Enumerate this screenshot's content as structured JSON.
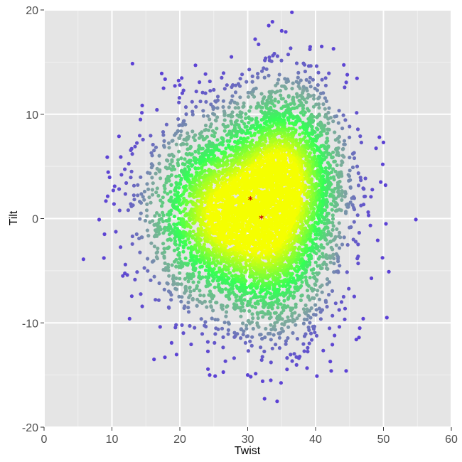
{
  "chart_data": {
    "type": "scatter",
    "title": "",
    "xlabel": "Twist",
    "ylabel": "Tilt",
    "xlim": [
      0,
      60
    ],
    "ylim": [
      -20,
      20
    ],
    "x_ticks": [
      0,
      10,
      20,
      30,
      40,
      50,
      60
    ],
    "y_ticks": [
      -20,
      -10,
      0,
      10,
      20
    ],
    "x_tick_labels": [
      "0",
      "10",
      "20",
      "30",
      "40",
      "50",
      "60"
    ],
    "y_tick_labels": [
      "-20",
      "-10",
      "0",
      "10",
      "20"
    ],
    "grid": true,
    "legend": "none",
    "colors": {
      "panel_background": "#e5e5e5",
      "grid_major": "#ffffff",
      "grid_minor": "#f2f2f2",
      "density_high": "#f5ff00",
      "density_mid": "#33ff55",
      "density_low": "#7fa6a0",
      "density_outlier": "#5b3fd6",
      "marker": "#cc0000"
    },
    "markers": [
      {
        "x": 30.4,
        "y": 1.8,
        "symbol": "*"
      },
      {
        "x": 32.0,
        "y": 0.0,
        "symbol": "*"
      }
    ],
    "outlier_points": [
      {
        "x": 5.8,
        "y": -3.9
      },
      {
        "x": 8.9,
        "y": -1.5
      },
      {
        "x": 10.2,
        "y": 2.7
      },
      {
        "x": 10.3,
        "y": 1.4
      },
      {
        "x": 10.4,
        "y": 3.1
      },
      {
        "x": 11.3,
        "y": 5.9
      },
      {
        "x": 11.4,
        "y": 4.2
      },
      {
        "x": 11.6,
        "y": -5.5
      },
      {
        "x": 12.6,
        "y": -9.6
      },
      {
        "x": 12.9,
        "y": 6.7
      },
      {
        "x": 13.4,
        "y": 6.9
      },
      {
        "x": 14.2,
        "y": 9.5
      },
      {
        "x": 16.2,
        "y": -13.5
      },
      {
        "x": 17.8,
        "y": -13.3
      },
      {
        "x": 17.6,
        "y": 12.5
      },
      {
        "x": 22.3,
        "y": 14.7
      },
      {
        "x": 24.4,
        "y": -15.0
      },
      {
        "x": 25.2,
        "y": -15.1
      },
      {
        "x": 30.0,
        "y": -15.0
      },
      {
        "x": 31.6,
        "y": 16.7
      },
      {
        "x": 32.2,
        "y": -15.6
      },
      {
        "x": 33.4,
        "y": -15.5
      },
      {
        "x": 33.1,
        "y": 18.5
      },
      {
        "x": 35.0,
        "y": 18.0
      },
      {
        "x": 35.6,
        "y": 17.9
      },
      {
        "x": 40.2,
        "y": -15.1
      },
      {
        "x": 42.3,
        "y": -14.6
      },
      {
        "x": 44.5,
        "y": -14.6
      },
      {
        "x": 46.0,
        "y": -11.6
      },
      {
        "x": 46.4,
        "y": -11.4
      },
      {
        "x": 46.5,
        "y": -10.5
      },
      {
        "x": 49.4,
        "y": 7.8
      },
      {
        "x": 49.6,
        "y": 3.5
      },
      {
        "x": 50.0,
        "y": 7.3
      },
      {
        "x": 49.9,
        "y": 5.2
      },
      {
        "x": 50.3,
        "y": 3.2
      },
      {
        "x": 50.5,
        "y": -9.5
      },
      {
        "x": 50.8,
        "y": -5.1
      },
      {
        "x": 40.9,
        "y": 16.5
      },
      {
        "x": 27.6,
        "y": 15.5
      },
      {
        "x": 31.1,
        "y": 17.2
      },
      {
        "x": 20.0,
        "y": 12.8
      }
    ],
    "clusters": [
      {
        "name": "",
        "center": [
          26.0,
          0.5
        ],
        "spread": [
          5.5,
          4.5
        ],
        "count": 2600
      },
      {
        "name": "",
        "center": [
          35.5,
          4.0
        ],
        "spread": [
          4.5,
          4.5
        ],
        "count": 2600
      },
      {
        "name": "",
        "center": [
          34.0,
          -4.0
        ],
        "spread": [
          4.5,
          4.0
        ],
        "count": 1200
      }
    ]
  }
}
